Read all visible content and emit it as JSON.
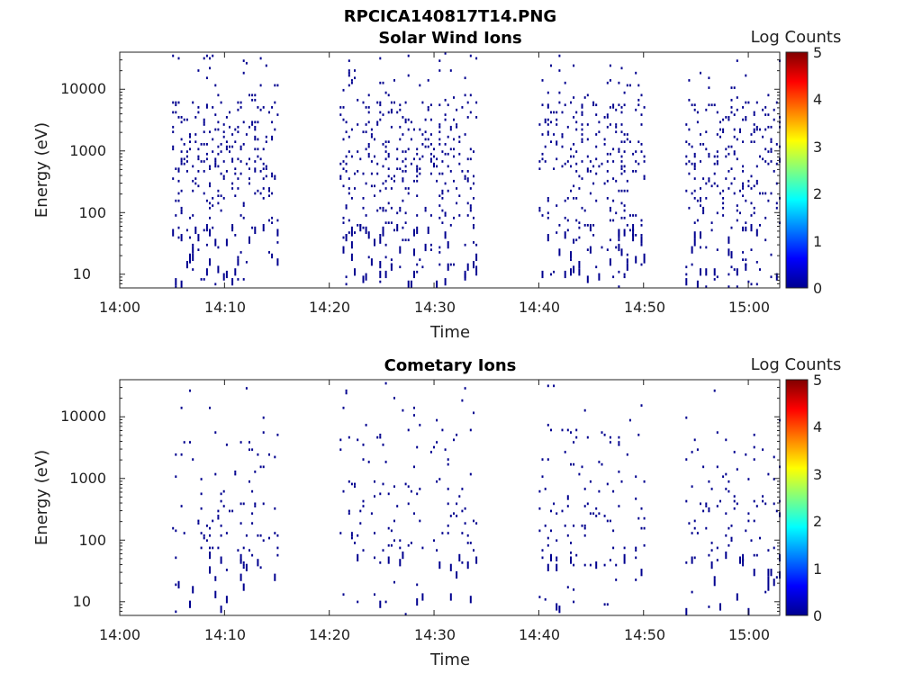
{
  "figure": {
    "title": "RPCICA140817T14.PNG",
    "colormap": [
      "#00008f",
      "#0000ff",
      "#00ffff",
      "#ffff00",
      "#ff0000",
      "#800000"
    ]
  },
  "chart_data": [
    {
      "type": "heatmap",
      "title": "Solar Wind Ions",
      "xlabel": "Time",
      "ylabel": "Energy (eV)",
      "x_ticks": [
        "14:00",
        "14:10",
        "14:20",
        "14:30",
        "14:40",
        "14:50",
        "15:00"
      ],
      "y_ticks": [
        "10",
        "100",
        "1000",
        "10000"
      ],
      "y_scale": "log",
      "ylim": [
        6,
        40000
      ],
      "xlim_minutes_after_14": [
        0,
        63
      ],
      "colorbar": {
        "label": "Log Counts",
        "range": [
          0,
          5
        ],
        "ticks": [
          "0",
          "1",
          "2",
          "3",
          "4",
          "5"
        ]
      },
      "observation_windows": [
        {
          "start": "14:05",
          "end": "14:15"
        },
        {
          "start": "14:21",
          "end": "14:34"
        },
        {
          "start": "14:40",
          "end": "14:50"
        },
        {
          "start": "14:54",
          "end": "15:03"
        }
      ],
      "data_level_log_counts": 0
    },
    {
      "type": "heatmap",
      "title": "Cometary Ions",
      "xlabel": "Time",
      "ylabel": "Energy (eV)",
      "x_ticks": [
        "14:00",
        "14:10",
        "14:20",
        "14:30",
        "14:40",
        "14:50",
        "15:00"
      ],
      "y_ticks": [
        "10",
        "100",
        "1000",
        "10000"
      ],
      "y_scale": "log",
      "ylim": [
        6,
        40000
      ],
      "xlim_minutes_after_14": [
        0,
        63
      ],
      "colorbar": {
        "label": "Log Counts",
        "range": [
          0,
          5
        ],
        "ticks": [
          "0",
          "1",
          "2",
          "3",
          "4",
          "5"
        ]
      },
      "observation_windows": [
        {
          "start": "14:05",
          "end": "14:15"
        },
        {
          "start": "14:21",
          "end": "14:34"
        },
        {
          "start": "14:40",
          "end": "14:50"
        },
        {
          "start": "14:54",
          "end": "15:03"
        }
      ],
      "data_level_log_counts": 0
    }
  ]
}
